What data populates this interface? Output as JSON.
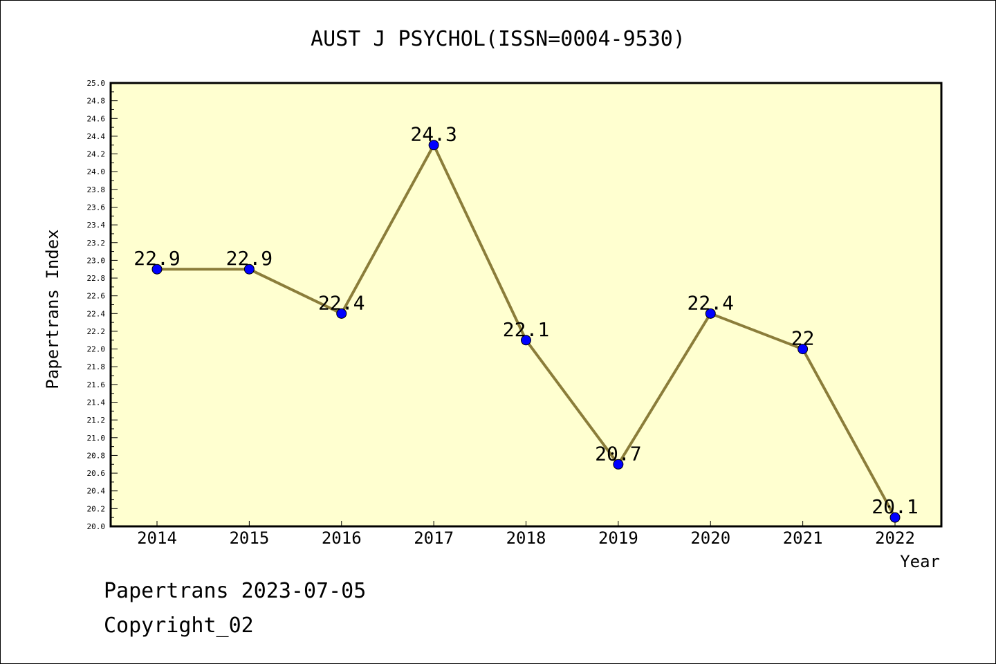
{
  "chart_data": {
    "type": "line",
    "title": "AUST J PSYCHOL(ISSN=0004-9530)",
    "xlabel": "Year",
    "ylabel": "Papertrans Index",
    "categories": [
      "2014",
      "2015",
      "2016",
      "2017",
      "2018",
      "2019",
      "2020",
      "2021",
      "2022"
    ],
    "series": [
      {
        "values": [
          22.9,
          22.9,
          22.4,
          24.3,
          22.1,
          20.7,
          22.4,
          22.0,
          20.1
        ],
        "labels": [
          "22.9",
          "22.9",
          "22.4",
          "24.3",
          "22.1",
          "20.7",
          "22.4",
          "22",
          "20.1"
        ]
      }
    ],
    "ylim": [
      20.0,
      25.0
    ],
    "yticks": [
      "20.0",
      "20.2",
      "20.4",
      "20.6",
      "20.8",
      "21.0",
      "21.2",
      "21.4",
      "21.6",
      "21.8",
      "22.0",
      "22.2",
      "22.4",
      "22.6",
      "22.8",
      "23.0",
      "23.2",
      "23.4",
      "23.6",
      "23.8",
      "24.0",
      "24.2",
      "24.4",
      "24.6",
      "24.8",
      "25.0"
    ],
    "grid": false,
    "legend": "none",
    "colors": {
      "plot_background": "#ffffd0",
      "line": "#8b7d3a",
      "marker": "#0000ff"
    }
  },
  "footer": {
    "stamp": "Papertrans 2023-07-05",
    "copyright": "Copyright_02"
  }
}
